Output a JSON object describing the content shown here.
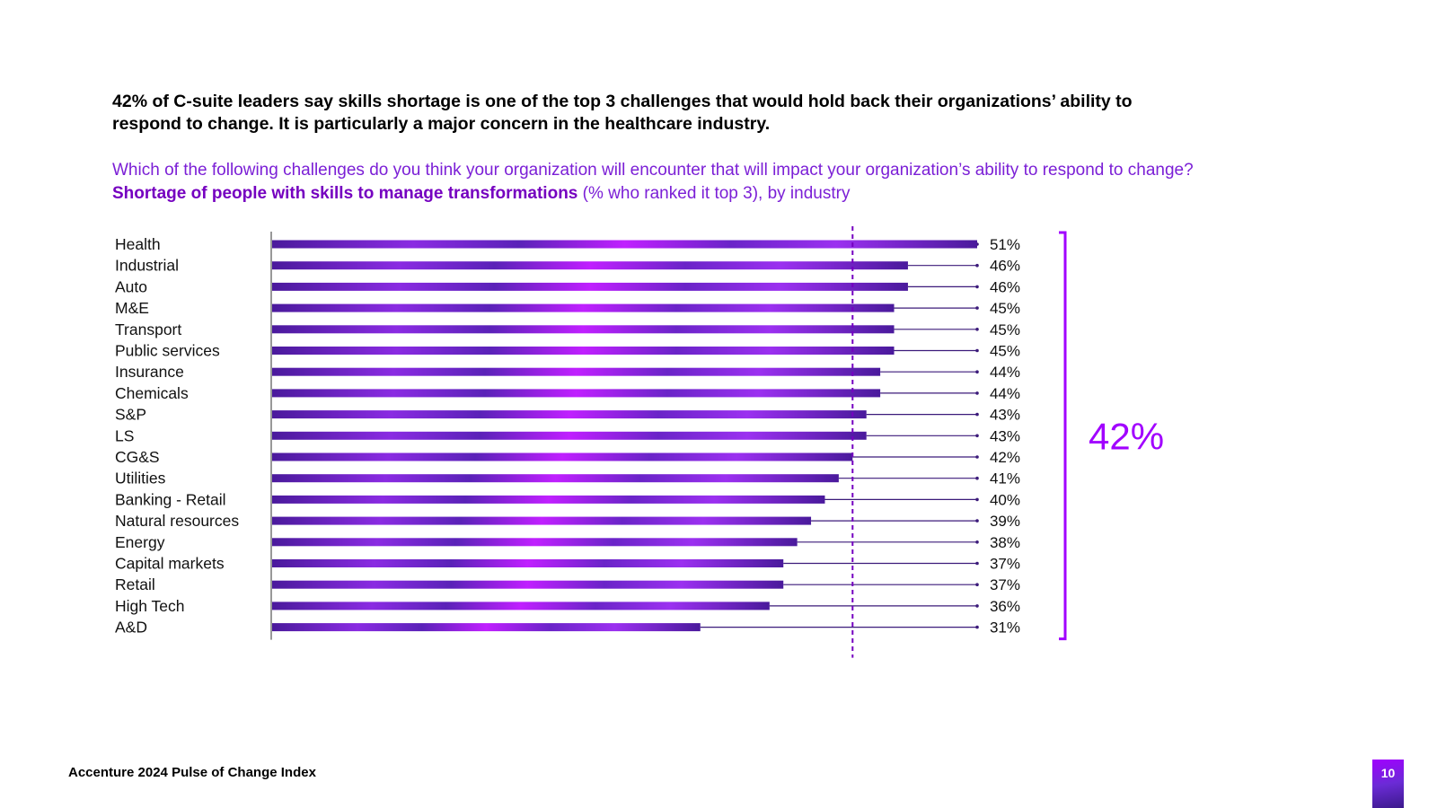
{
  "headline": "42% of C-suite leaders say skills shortage is one of the top 3 challenges that would hold back their organizations’ ability to respond to change. It is particularly a major concern in the healthcare industry.",
  "question": {
    "line1": "Which of the following challenges do you think your organization will encounter that will impact your organization’s ability to respond to change?",
    "bold": "Shortage of people with skills to manage transformations",
    "rest": " (% who ranked it top 3), by industry"
  },
  "footer": "Accenture 2024 Pulse of Change Index",
  "page_number": "10",
  "colors": {
    "bar_dark": "#4a1a9c",
    "bar_mid": "#8a2be2",
    "bar_bright": "#c020ff",
    "accent": "#a100ff",
    "leader": "#3b1a7a"
  },
  "chart_data": {
    "type": "bar",
    "orientation": "horizontal",
    "categories": [
      "Health",
      "Industrial",
      "Auto",
      "M&E",
      "Transport",
      "Public services",
      "Insurance",
      "Chemicals",
      "S&P",
      "LS",
      "CG&S",
      "Utilities",
      "Banking - Retail",
      "Natural resources",
      "Energy",
      "Capital markets",
      "Retail",
      "High Tech",
      "A&D"
    ],
    "values": [
      51,
      46,
      46,
      45,
      45,
      45,
      44,
      44,
      43,
      43,
      42,
      41,
      40,
      39,
      38,
      37,
      37,
      36,
      31
    ],
    "value_labels": [
      "51%",
      "46%",
      "46%",
      "45%",
      "45%",
      "45%",
      "44%",
      "44%",
      "43%",
      "43%",
      "42%",
      "41%",
      "40%",
      "39%",
      "38%",
      "37%",
      "37%",
      "36%",
      "31%"
    ],
    "reference_line": {
      "value": 42,
      "style": "dashed"
    },
    "bracket_label": "42%",
    "xlim": [
      0,
      51
    ]
  }
}
